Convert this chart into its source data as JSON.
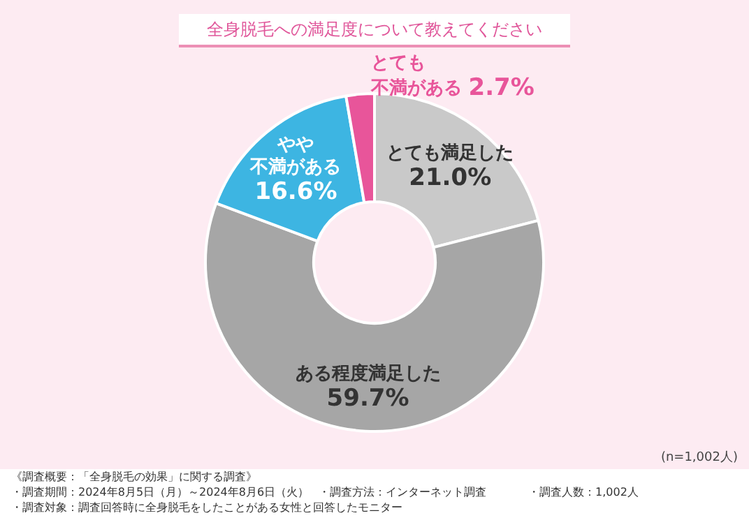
{
  "chart_data": {
    "type": "donut",
    "title": "全身脱毛への満足度について教えてください",
    "categories": [
      "とても満足した",
      "ある程度満足した",
      "やや不満がある",
      "とても不満がある"
    ],
    "values": [
      21.0,
      59.7,
      16.6,
      2.7
    ],
    "colors": [
      "#c9c9c9",
      "#a6a6a6",
      "#3db5e2",
      "#e8559a"
    ],
    "value_labels": [
      "21.0%",
      "59.7%",
      "16.6%",
      "2.7%"
    ],
    "legend": false,
    "annotations": [
      "(n=1,002人)",
      "《調査概要：「全身脱毛の効果」に関する調査》",
      "・調査期間：2024年8月5日（月）～2024年8月6日（火）",
      "・調査方法：インターネット調査",
      "・調査人数：1,002人",
      "・調査対象：調査回答時に全身脱毛をしたことがある女性と回答したモニター"
    ]
  }
}
